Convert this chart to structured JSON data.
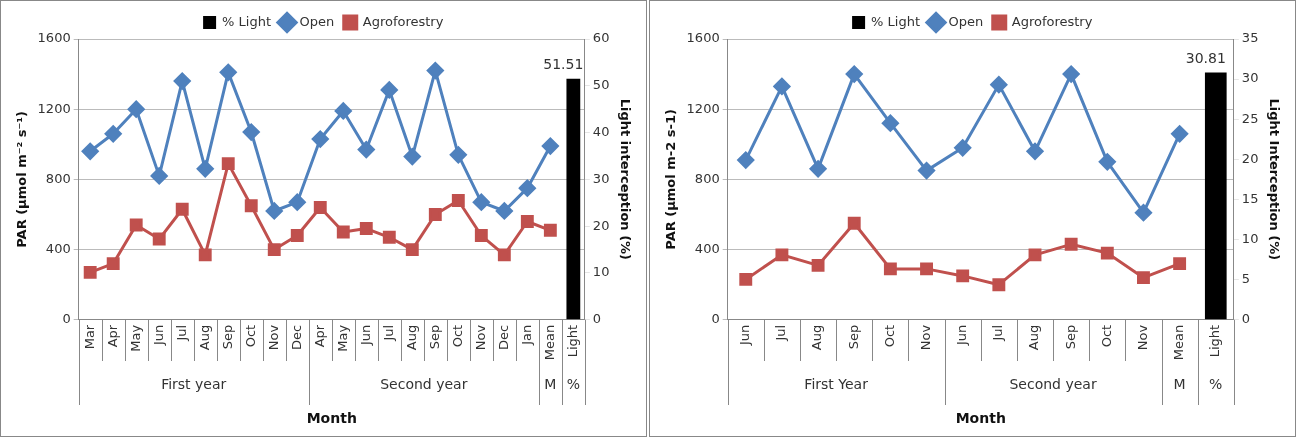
{
  "chart_data": [
    {
      "type": "line",
      "xlabel": "Month",
      "ylabel": "PAR (µmol m⁻² s⁻¹)",
      "y2label": "Light interception (%)",
      "categories": [
        "Mar",
        "Apr",
        "May",
        "Jun",
        "Jul",
        "Aug",
        "Sep",
        "Oct",
        "Nov",
        "Dec",
        "Apr",
        "May",
        "Jun",
        "Jul",
        "Aug",
        "Sep",
        "Oct",
        "Nov",
        "Dec",
        "Jan",
        "Mean",
        "Light"
      ],
      "series": [
        {
          "name": "% Light",
          "type": "bar",
          "axis": "y2",
          "color": "#000000",
          "values": [
            null,
            null,
            null,
            null,
            null,
            null,
            null,
            null,
            null,
            null,
            null,
            null,
            null,
            null,
            null,
            null,
            null,
            null,
            null,
            null,
            null,
            51.51
          ],
          "value_labels": [
            null,
            null,
            null,
            null,
            null,
            null,
            null,
            null,
            null,
            null,
            null,
            null,
            null,
            null,
            null,
            null,
            null,
            null,
            null,
            null,
            null,
            "51.51"
          ]
        },
        {
          "name": "Open",
          "color": "#4f81bd",
          "marker": "diamond",
          "values": [
            960,
            1060,
            1200,
            820,
            1360,
            860,
            1410,
            1070,
            620,
            670,
            1030,
            1190,
            970,
            1310,
            930,
            1420,
            940,
            670,
            620,
            750,
            990,
            null
          ]
        },
        {
          "name": "Agroforestry",
          "color": "#c0504d",
          "marker": "square",
          "values": [
            270,
            320,
            540,
            460,
            630,
            370,
            890,
            650,
            400,
            480,
            640,
            500,
            520,
            470,
            400,
            600,
            680,
            480,
            370,
            560,
            510,
            null
          ]
        }
      ],
      "ylim": [
        0,
        1600
      ],
      "yticks": [
        0,
        400,
        800,
        1200,
        1600
      ],
      "y2lim": [
        0,
        60
      ],
      "y2ticks": [
        0,
        10,
        20,
        30,
        40,
        50,
        60
      ],
      "grid": "y",
      "legend": "top",
      "annotations": [
        "First year",
        "Second year",
        "M",
        "%"
      ]
    },
    {
      "type": "line",
      "xlabel": "Month",
      "ylabel": "PAR (µmol m-2 s-1)",
      "y2label": "Light Interception (%)",
      "categories": [
        "Jun",
        "Jul",
        "Aug",
        "Sep",
        "Oct",
        "Nov",
        "Jun",
        "Jul",
        "Aug",
        "Sep",
        "Oct",
        "Nov",
        "Mean",
        "Light"
      ],
      "series": [
        {
          "name": "% Light",
          "type": "bar",
          "axis": "y2",
          "color": "#000000",
          "values": [
            null,
            null,
            null,
            null,
            null,
            null,
            null,
            null,
            null,
            null,
            null,
            null,
            null,
            30.81
          ],
          "value_labels": [
            null,
            null,
            null,
            null,
            null,
            null,
            null,
            null,
            null,
            null,
            null,
            null,
            null,
            "30.81"
          ]
        },
        {
          "name": "Open",
          "color": "#4f81bd",
          "marker": "diamond",
          "values": [
            910,
            1330,
            860,
            1400,
            1120,
            850,
            980,
            1340,
            960,
            1400,
            900,
            610,
            1060,
            null
          ]
        },
        {
          "name": "Agroforestry",
          "color": "#c0504d",
          "marker": "square",
          "values": [
            230,
            370,
            310,
            550,
            290,
            290,
            250,
            200,
            370,
            430,
            380,
            240,
            320,
            null
          ]
        }
      ],
      "ylim": [
        0,
        1600
      ],
      "yticks": [
        0,
        400,
        800,
        1200,
        1600
      ],
      "y2lim": [
        0,
        35
      ],
      "y2ticks": [
        0,
        5,
        10,
        15,
        20,
        25,
        30,
        35
      ],
      "grid": "y",
      "legend": "top",
      "annotations": [
        "First Year",
        "Second year",
        "M",
        "%"
      ]
    }
  ]
}
